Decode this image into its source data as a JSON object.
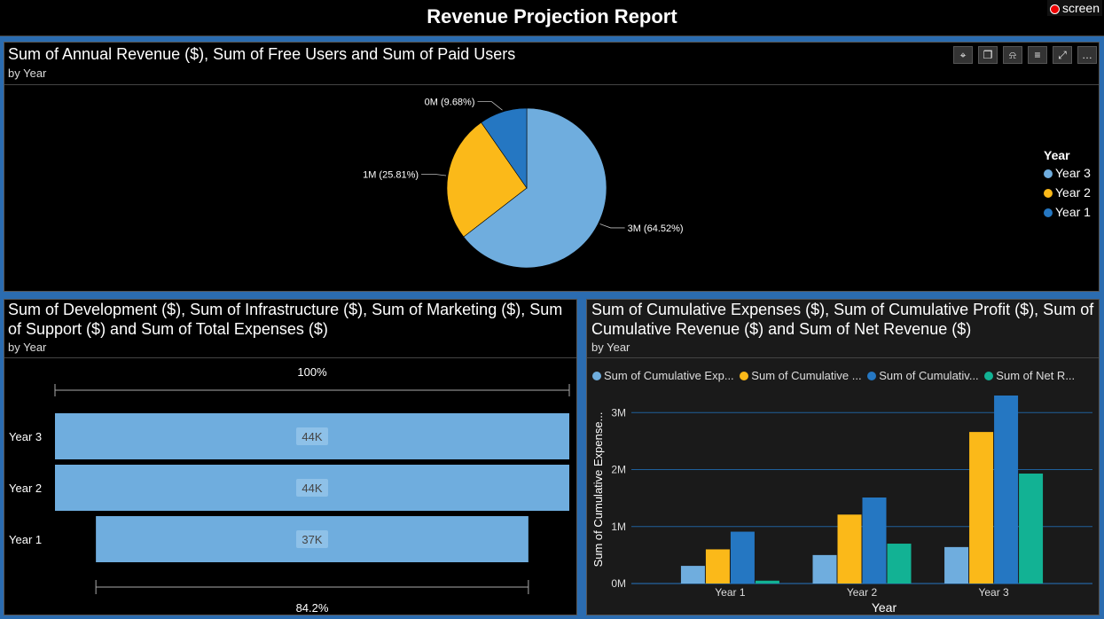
{
  "header": {
    "title": "Revenue Projection Report",
    "badge": "screen"
  },
  "toolbar": {
    "icons": [
      "pin-icon",
      "copy-icon",
      "bell-icon",
      "filter-icon",
      "expand-icon",
      "more-icon"
    ]
  },
  "colors": {
    "year3": "#6fadde",
    "year2": "#fbb919",
    "year1": "#2577c2",
    "net": "#12b294"
  },
  "pie": {
    "title": "Sum of Annual Revenue ($), Sum of Free Users and Sum of Paid Users",
    "subtitle": "by Year",
    "legend_title": "Year",
    "slices": [
      {
        "name": "Year 3",
        "percent": 64.52,
        "label": "3M (64.52%)"
      },
      {
        "name": "Year 2",
        "percent": 25.81,
        "label": "1M (25.81%)"
      },
      {
        "name": "Year 1",
        "percent": 9.68,
        "label": "0M (9.68%)"
      }
    ]
  },
  "funnel": {
    "title_line1": "Sum of Development ($), Sum of Infrastructure ($), Sum of Marketing ($), Sum",
    "title_line2": "of Support ($) and Sum of Total Expenses ($)",
    "subtitle": "by Year",
    "top_label": "100%",
    "bottom_label": "84.2%",
    "rows": [
      {
        "name": "Year 3",
        "value": 44,
        "label": "44K"
      },
      {
        "name": "Year 2",
        "value": 44,
        "label": "44K"
      },
      {
        "name": "Year 1",
        "value": 37,
        "label": "37K"
      }
    ]
  },
  "chart_data": {
    "type": "bar",
    "title": "Sum of Cumulative Expenses ($), Sum of Cumulative Profit ($), Sum of Cumulative Revenue ($) and Sum of Net Revenue ($)",
    "title_line1": "Sum of Cumulative Expenses ($), Sum of Cumulative Profit ($), Sum of",
    "title_line2": "Cumulative Revenue ($) and Sum of Net Revenue ($)",
    "subtitle": "by Year",
    "xlabel": "Year",
    "ylabel": "Sum of Cumulative Expense...",
    "ylim": [
      0,
      3300000
    ],
    "yticks": [
      0,
      1000000,
      2000000,
      3000000
    ],
    "ytick_labels": [
      "0M",
      "1M",
      "2M",
      "3M"
    ],
    "categories": [
      "Year 1",
      "Year 2",
      "Year 3"
    ],
    "series": [
      {
        "name": "Sum of Cumulative Expenses ($)",
        "legend_label": "Sum of Cumulative Exp...",
        "color": "#6fadde",
        "values": [
          310000,
          500000,
          640000
        ]
      },
      {
        "name": "Sum of Cumulative Profit ($)",
        "legend_label": "Sum of Cumulative ...",
        "color": "#fbb919",
        "values": [
          600000,
          1210000,
          2660000
        ]
      },
      {
        "name": "Sum of Cumulative Revenue ($)",
        "legend_label": "Sum of Cumulativ...",
        "color": "#2577c2",
        "values": [
          910000,
          1510000,
          3300000
        ]
      },
      {
        "name": "Sum of Net Revenue ($)",
        "legend_label": "Sum of Net R...",
        "color": "#12b294",
        "values": [
          50000,
          700000,
          1930000
        ]
      }
    ]
  }
}
